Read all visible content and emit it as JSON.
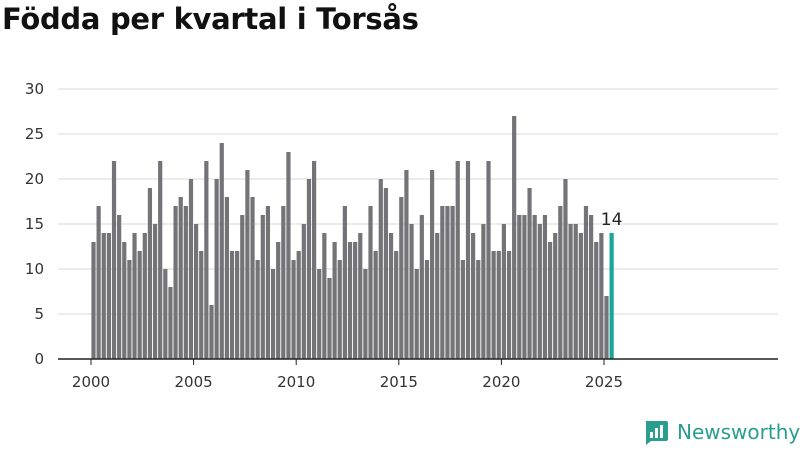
{
  "title": "Födda per kvartal i Torsås",
  "brand": {
    "name": "Newsworthy",
    "icon": "newsworthy-logo-icon"
  },
  "colors": {
    "bar": "#747378",
    "highlight": "#1aa59a",
    "grid": "#d9d9d9",
    "axis": "#222222"
  },
  "chart_data": {
    "type": "bar",
    "title": "Födda per kvartal i Torsås",
    "xlabel": "",
    "ylabel": "",
    "ylim": [
      0,
      30
    ],
    "yticks": [
      0,
      5,
      10,
      15,
      20,
      25,
      30
    ],
    "xticks": [
      "2000",
      "2005",
      "2010",
      "2015",
      "2020",
      "2025"
    ],
    "grid": true,
    "start": "2000-Q1",
    "values": [
      13,
      17,
      14,
      14,
      22,
      16,
      13,
      11,
      14,
      12,
      14,
      19,
      15,
      22,
      10,
      8,
      17,
      18,
      17,
      20,
      15,
      12,
      22,
      6,
      20,
      24,
      18,
      12,
      12,
      16,
      21,
      18,
      11,
      16,
      17,
      10,
      13,
      17,
      23,
      11,
      12,
      15,
      20,
      22,
      10,
      14,
      9,
      13,
      11,
      17,
      13,
      13,
      14,
      10,
      17,
      12,
      20,
      19,
      14,
      12,
      18,
      21,
      15,
      10,
      16,
      11,
      21,
      14,
      17,
      17,
      17,
      22,
      11,
      22,
      14,
      11,
      15,
      22,
      12,
      12,
      15,
      12,
      27,
      16,
      16,
      19,
      16,
      15,
      16,
      13,
      14,
      17,
      20,
      15,
      15,
      14,
      17,
      16,
      13,
      14,
      7,
      14
    ],
    "highlight_last": true,
    "annotation": "14"
  }
}
